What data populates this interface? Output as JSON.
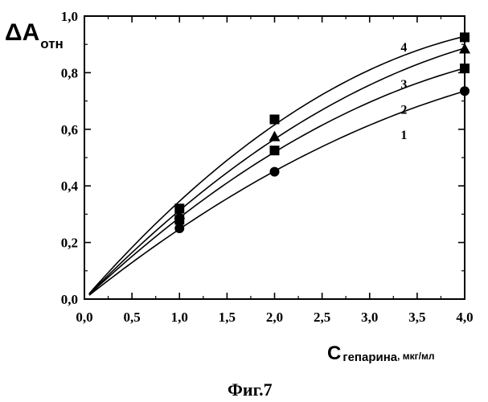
{
  "figure": {
    "caption": "Фиг.7"
  },
  "chart_data": {
    "type": "line",
    "y_title": {
      "main": "ΔA",
      "sub": "отн"
    },
    "x_title": {
      "main": "C",
      "sub": "гепарина",
      "unit": ", мкг/мл"
    },
    "xlim": [
      0,
      4
    ],
    "ylim": [
      0,
      1
    ],
    "x_ticks": [
      0,
      0.5,
      1,
      1.5,
      2,
      2.5,
      3,
      3.5,
      4
    ],
    "x_tick_labels": [
      "0,0",
      "0,5",
      "1,0",
      "1,5",
      "2,0",
      "2,5",
      "3,0",
      "3,5",
      "4,0"
    ],
    "y_ticks": [
      0,
      0.2,
      0.4,
      0.6,
      0.8,
      1.0
    ],
    "y_tick_labels": [
      "0,0",
      "0,2",
      "0,4",
      "0,6",
      "0,8",
      "1,0"
    ],
    "grid": false,
    "series": [
      {
        "label": "1",
        "marker": "circle",
        "x": [
          1,
          2,
          4
        ],
        "y": [
          0.25,
          0.45,
          0.735
        ],
        "label_pos": [
          3.36,
          0.565
        ]
      },
      {
        "label": "2",
        "marker": "square",
        "x": [
          1,
          2,
          4
        ],
        "y": [
          0.28,
          0.525,
          0.815
        ],
        "label_pos": [
          3.36,
          0.655
        ]
      },
      {
        "label": "3",
        "marker": "triangle",
        "x": [
          1,
          2,
          4
        ],
        "y": [
          0.3,
          0.575,
          0.885
        ],
        "label_pos": [
          3.36,
          0.745
        ]
      },
      {
        "label": "4",
        "marker": "square",
        "x": [
          1,
          2,
          4
        ],
        "y": [
          0.32,
          0.635,
          0.925
        ],
        "label_pos": [
          3.36,
          0.875
        ]
      }
    ]
  }
}
